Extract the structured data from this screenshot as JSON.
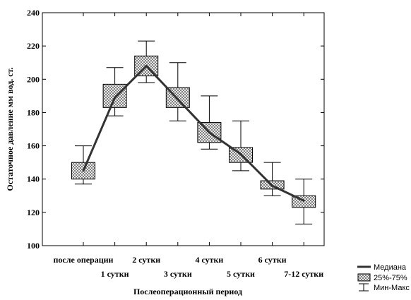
{
  "chart_data": {
    "type": "box",
    "title": "",
    "xlabel": "Послеоперационный период",
    "ylabel": "Остаточное давление мм вод. ст.",
    "ylim": [
      100,
      240
    ],
    "yticks": [
      100,
      120,
      140,
      160,
      180,
      200,
      220,
      240
    ],
    "grid": false,
    "legend_position": "bottom-right",
    "categories": [
      "после операции",
      "1 сутки",
      "2 сутки",
      "3 сутки",
      "4 сутки",
      "5 сутки",
      "6 сутки",
      "7-12 сутки"
    ],
    "series": [
      {
        "median": [
          145,
          189,
          208,
          188,
          168,
          155,
          136,
          127
        ],
        "q1": [
          140,
          183,
          202,
          183,
          162,
          150,
          134,
          123
        ],
        "q3": [
          150,
          197,
          214,
          195,
          174,
          159,
          139,
          130
        ],
        "min": [
          137,
          178,
          198,
          175,
          158,
          145,
          130,
          113
        ],
        "max": [
          160,
          207,
          223,
          210,
          190,
          175,
          150,
          140
        ]
      }
    ],
    "legend": [
      "Медиана",
      "25%-75%",
      "Мин-Макс"
    ]
  }
}
